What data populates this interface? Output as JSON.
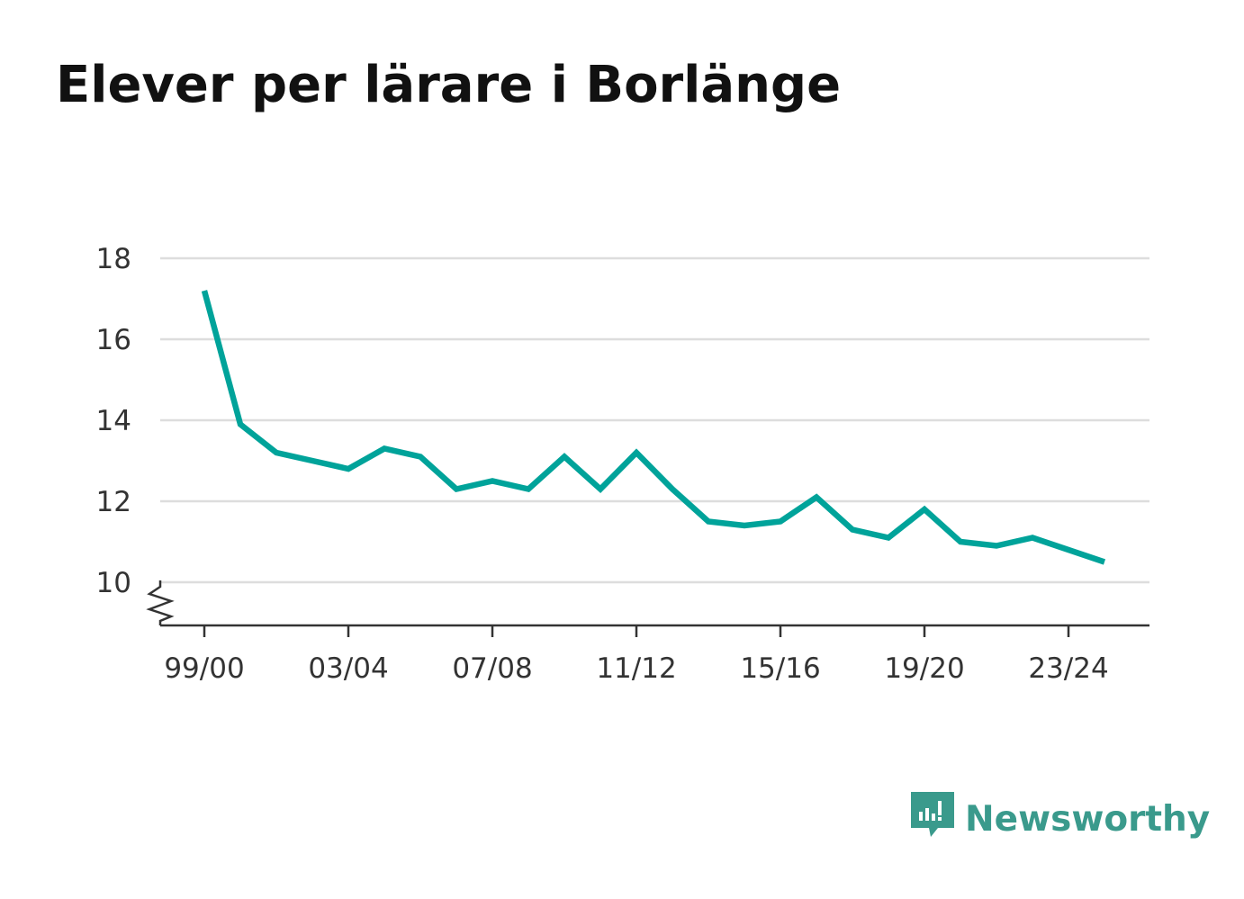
{
  "title": "Elever per lärare i Borlänge",
  "brand": {
    "name": "Newsworthy",
    "color": "#3a9a8c",
    "icon": "newsworthy-logo-icon"
  },
  "colors": {
    "line": "#00a39a",
    "grid": "#dddddd",
    "axis": "#333333"
  },
  "chart_data": {
    "type": "line",
    "title": "Elever per lärare i Borlänge",
    "xlabel": "",
    "ylabel": "",
    "categories": [
      "99/00",
      "00/01",
      "01/02",
      "02/03",
      "03/04",
      "04/05",
      "05/06",
      "06/07",
      "07/08",
      "08/09",
      "09/10",
      "10/11",
      "11/12",
      "12/13",
      "13/14",
      "14/15",
      "15/16",
      "16/17",
      "17/18",
      "18/19",
      "19/20",
      "20/21",
      "21/22",
      "22/23",
      "23/24",
      "24/25"
    ],
    "x_tick_labels": [
      "99/00",
      "03/04",
      "07/08",
      "11/12",
      "15/16",
      "19/20",
      "23/24"
    ],
    "y_ticks": [
      10,
      12,
      14,
      16,
      18
    ],
    "ylim": [
      9,
      18
    ],
    "axis_break": true,
    "grid": true,
    "series": [
      {
        "values": [
          17.2,
          13.9,
          13.2,
          13.0,
          12.8,
          13.3,
          13.1,
          12.3,
          12.5,
          12.3,
          13.1,
          12.3,
          13.2,
          12.3,
          11.5,
          11.4,
          11.5,
          12.1,
          11.3,
          11.1,
          11.8,
          11.0,
          10.9,
          11.1,
          10.8,
          10.5
        ]
      }
    ]
  }
}
